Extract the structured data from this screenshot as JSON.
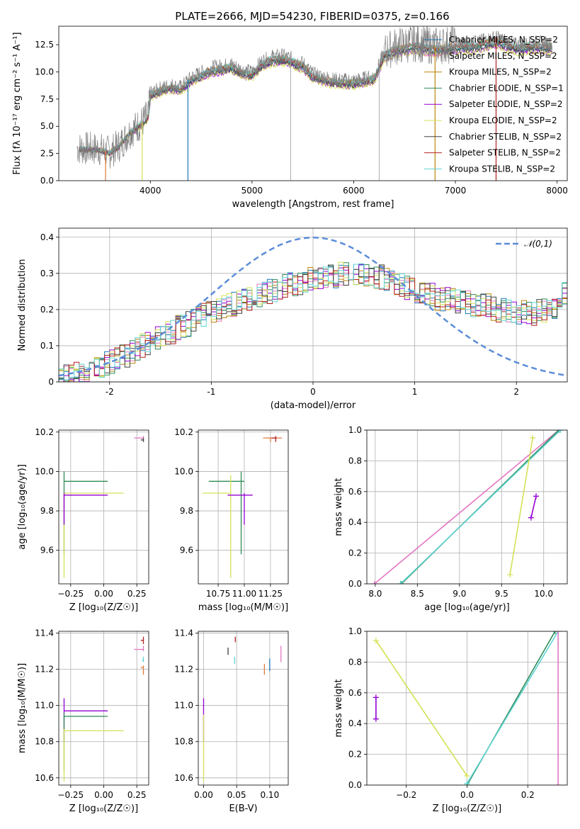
{
  "page": {
    "title": "PLATE=2666, MJD=54230, FIBERID=0375, z=0.166"
  },
  "chart_data": [
    {
      "id": "spectrum",
      "type": "line",
      "xlabel": "wavelength [Angstrom, rest frame]",
      "ylabel": "Flux [f_λ 10^-17 erg cm^-2 s^-1 A^-1]",
      "xlim": [
        3100,
        8100
      ],
      "ylim": [
        0,
        14.2
      ],
      "xticks": [
        4000,
        5000,
        6000,
        7000,
        8000
      ],
      "yticks": [
        0.0,
        2.5,
        5.0,
        7.5,
        10.0,
        12.5
      ],
      "grid": false,
      "legend_position": "right",
      "data_color": "#7f7f7f",
      "continuum": [
        [
          3280,
          3.0
        ],
        [
          3500,
          2.9
        ],
        [
          3600,
          2.6
        ],
        [
          3700,
          3.3
        ],
        [
          3800,
          4.5
        ],
        [
          3900,
          5.2
        ],
        [
          3980,
          6.0
        ],
        [
          4000,
          8.0
        ],
        [
          4100,
          8.5
        ],
        [
          4200,
          8.8
        ],
        [
          4300,
          8.6
        ],
        [
          4400,
          9.5
        ],
        [
          4600,
          10.4
        ],
        [
          4800,
          10.7
        ],
        [
          4900,
          10.2
        ],
        [
          5000,
          10.0
        ],
        [
          5100,
          11.0
        ],
        [
          5200,
          11.4
        ],
        [
          5300,
          11.5
        ],
        [
          5400,
          11.2
        ],
        [
          5500,
          10.8
        ],
        [
          5600,
          9.8
        ],
        [
          5800,
          9.3
        ],
        [
          6000,
          9.2
        ],
        [
          6200,
          9.6
        ],
        [
          6300,
          11.8
        ],
        [
          6400,
          12.3
        ],
        [
          6600,
          12.7
        ],
        [
          6800,
          12.4
        ],
        [
          7000,
          12.6
        ],
        [
          7200,
          12.7
        ],
        [
          7400,
          13.2
        ],
        [
          7600,
          12.5
        ],
        [
          7800,
          12.7
        ],
        [
          7900,
          12.6
        ]
      ],
      "series": [
        {
          "name": "Chabrier MILES, N_SSP=2",
          "color": "#1f77b4"
        },
        {
          "name": "Salpeter MILES, N_SSP=2",
          "color": "#e377c2"
        },
        {
          "name": "Kroupa MILES, N_SSP=2",
          "color": "#b8860b"
        },
        {
          "name": "Chabrier ELODIE, N_SSP=1",
          "color": "#2e8b57"
        },
        {
          "name": "Salpeter ELODIE, N_SSP=2",
          "color": "#9400d3"
        },
        {
          "name": "Kroupa ELODIE, N_SSP=2",
          "color": "#d4e157"
        },
        {
          "name": "Chabrier STELIB, N_SSP=2",
          "color": "#404040"
        },
        {
          "name": "Salpeter STELIB, N_SSP=2",
          "color": "#b22222"
        },
        {
          "name": "Kroupa STELIB, N_SSP=2",
          "color": "#5fd3d3"
        }
      ],
      "vlines_x": [
        5380,
        6250
      ]
    },
    {
      "id": "residuals",
      "type": "bar",
      "xlabel": "(data-model)/error",
      "ylabel": "Normed distribution",
      "xlim": [
        -2.5,
        2.5
      ],
      "ylim": [
        0,
        0.425
      ],
      "xticks": [
        -2,
        -1,
        0,
        1,
        2
      ],
      "yticks": [
        0.0,
        0.1,
        0.2,
        0.3,
        0.4
      ],
      "grid": true,
      "legend_position": "top-right",
      "gaussian_label": "𝒩(0,1)",
      "gaussian_color": "#5b8dd9",
      "bin_width": 0.1,
      "bin_start": -2.5,
      "base_hist": [
        0.01,
        0.02,
        0.02,
        0.02,
        0.025,
        0.03,
        0.035,
        0.04,
        0.04,
        0.05,
        0.055,
        0.06,
        0.07,
        0.075,
        0.08,
        0.09,
        0.1,
        0.105,
        0.11,
        0.12,
        0.13,
        0.135,
        0.14,
        0.15,
        0.155,
        0.16,
        0.17,
        0.175,
        0.185,
        0.19,
        0.195,
        0.2,
        0.205,
        0.21,
        0.215,
        0.22,
        0.225,
        0.23,
        0.235,
        0.24,
        0.245,
        0.25,
        0.255,
        0.26,
        0.265,
        0.27,
        0.27,
        0.275,
        0.28,
        0.285,
        0.29,
        0.29,
        0.29,
        0.29,
        0.29,
        0.3,
        0.3,
        0.3,
        0.3,
        0.3,
        0.3,
        0.3,
        0.29,
        0.29,
        0.28,
        0.28,
        0.27,
        0.27,
        0.26,
        0.26,
        0.25,
        0.25,
        0.24,
        0.24,
        0.23,
        0.23,
        0.23,
        0.23,
        0.22,
        0.22,
        0.22,
        0.21,
        0.21,
        0.21,
        0.21,
        0.2,
        0.2,
        0.2,
        0.2,
        0.19,
        0.19,
        0.19,
        0.19,
        0.19,
        0.2,
        0.2,
        0.2,
        0.21,
        0.22,
        0.24
      ]
    },
    {
      "id": "age_vs_Z",
      "type": "scatter",
      "xlabel": "Z [log10(Z/Z☉)]",
      "ylabel": "age  [log10(age/yr)]",
      "xlim": [
        -0.34,
        0.34
      ],
      "ylim": [
        9.43,
        10.21
      ],
      "xticks": [
        -0.25,
        0.0,
        0.25
      ],
      "xticklabels": [
        "−0.25",
        "0.00",
        "0.25"
      ],
      "yticks": [
        9.6,
        9.8,
        10.0,
        10.2
      ],
      "grid": true,
      "errorbars": [
        {
          "x": -0.3,
          "y": 9.95,
          "xlo": -0.3,
          "xhi": 0.03,
          "ylo": 9.58,
          "yhi": 10.0,
          "color": "#2e8b57"
        },
        {
          "x": -0.3,
          "y": 9.89,
          "xlo": -0.3,
          "xhi": 0.15,
          "ylo": 9.46,
          "yhi": 9.89,
          "color": "#d4e157"
        },
        {
          "x": -0.3,
          "y": 9.88,
          "xlo": -0.3,
          "xhi": 0.03,
          "ylo": 9.73,
          "yhi": 9.89,
          "color": "#9400d3"
        },
        {
          "x": 0.3,
          "y": 10.17,
          "xlo": 0.23,
          "xhi": 0.3,
          "ylo": 10.15,
          "yhi": 10.18,
          "color": "#e377c2"
        },
        {
          "x": 0.3,
          "y": 10.16,
          "xlo": 0.28,
          "xhi": 0.3,
          "ylo": 10.15,
          "yhi": 10.17,
          "color": "#404040"
        }
      ]
    },
    {
      "id": "age_vs_mass",
      "type": "scatter",
      "xlabel": "mass [log10(M/M☉)]",
      "xlim": [
        10.56,
        11.42
      ],
      "ylim": [
        9.43,
        10.21
      ],
      "xticks": [
        10.75,
        11.0,
        11.25
      ],
      "xticklabels": [
        "10.75",
        "11.00",
        "11.25"
      ],
      "yticks": [
        9.6,
        9.8,
        10.0,
        10.2
      ],
      "grid": true,
      "errorbars": [
        {
          "x": 10.97,
          "y": 9.95,
          "xlo": 10.66,
          "xhi": 11.0,
          "ylo": 9.58,
          "yhi": 10.0,
          "color": "#2e8b57"
        },
        {
          "x": 10.87,
          "y": 9.89,
          "xlo": 10.6,
          "xhi": 10.87,
          "ylo": 9.46,
          "yhi": 9.98,
          "color": "#d4e157"
        },
        {
          "x": 11.0,
          "y": 9.88,
          "xlo": 10.84,
          "xhi": 11.08,
          "ylo": 9.73,
          "yhi": 9.89,
          "color": "#9400d3"
        },
        {
          "x": 11.25,
          "y": 10.17,
          "xlo": 11.18,
          "xhi": 11.36,
          "ylo": 10.15,
          "yhi": 10.17,
          "color": "#e07b39"
        },
        {
          "x": 11.3,
          "y": 10.17,
          "xlo": 11.26,
          "xhi": 11.31,
          "ylo": 10.15,
          "yhi": 10.18,
          "color": "#b22222"
        }
      ]
    },
    {
      "id": "massweight_vs_age",
      "type": "line",
      "xlabel": "age  [log10(age/yr)]",
      "ylabel": "mass weight",
      "xlim": [
        7.9,
        10.28
      ],
      "ylim": [
        0,
        1.0
      ],
      "xticks": [
        8.0,
        8.5,
        9.0,
        9.5,
        10.0
      ],
      "xticklabels": [
        "8.0",
        "8.5",
        "9.0",
        "9.5",
        "10.0"
      ],
      "yticks": [
        0.0,
        0.2,
        0.4,
        0.6,
        0.8,
        1.0
      ],
      "grid": true,
      "lines": [
        {
          "color": "#e377c2",
          "points": [
            [
              7.99,
              0.0
            ],
            [
              10.18,
              1.0
            ]
          ]
        },
        {
          "color": "#2e8b57",
          "points": [
            [
              8.31,
              0.0
            ],
            [
              10.18,
              1.0
            ]
          ]
        },
        {
          "color": "#5fd3d3",
          "points": [
            [
              8.3,
              0.0
            ],
            [
              10.2,
              1.0
            ]
          ]
        },
        {
          "color": "#d4e157",
          "points": [
            [
              9.6,
              0.06
            ],
            [
              9.87,
              0.95
            ]
          ]
        },
        {
          "color": "#9400d3",
          "points": [
            [
              9.85,
              0.43
            ],
            [
              9.91,
              0.57
            ]
          ]
        }
      ]
    },
    {
      "id": "mass_vs_Z",
      "type": "scatter",
      "xlabel": "Z [log10(Z/Z☉)]",
      "ylabel": "mass [log10(M/M☉)]",
      "xlim": [
        -0.34,
        0.34
      ],
      "ylim": [
        10.56,
        11.41
      ],
      "xticks": [
        -0.25,
        0.0,
        0.25
      ],
      "xticklabels": [
        "−0.25",
        "0.00",
        "0.25"
      ],
      "yticks": [
        10.6,
        10.8,
        11.0,
        11.2,
        11.4
      ],
      "yticklabels": [
        "10.6",
        "10.8",
        "11.0",
        "11.2",
        "11.4"
      ],
      "grid": true,
      "errorbars": [
        {
          "x": -0.3,
          "y": 10.97,
          "xlo": -0.3,
          "xhi": 0.03,
          "ylo": 10.8,
          "yhi": 11.04,
          "color": "#9400d3"
        },
        {
          "x": -0.3,
          "y": 10.94,
          "xlo": -0.3,
          "xhi": 0.03,
          "ylo": 10.64,
          "yhi": 10.96,
          "color": "#2e8b57"
        },
        {
          "x": -0.3,
          "y": 10.86,
          "xlo": -0.3,
          "xhi": 0.15,
          "ylo": 10.58,
          "yhi": 10.87,
          "color": "#d4e157"
        },
        {
          "x": 0.3,
          "y": 11.31,
          "xlo": 0.23,
          "xhi": 0.3,
          "ylo": 11.3,
          "yhi": 11.33,
          "color": "#e377c2"
        },
        {
          "x": 0.3,
          "y": 11.36,
          "xlo": 0.28,
          "xhi": 0.3,
          "ylo": 11.34,
          "yhi": 11.38,
          "color": "#b22222"
        },
        {
          "x": 0.3,
          "y": 11.21,
          "xlo": 0.28,
          "xhi": 0.3,
          "ylo": 11.17,
          "yhi": 11.22,
          "color": "#e07b39"
        },
        {
          "x": 0.3,
          "y": 11.25,
          "xlo": 0.29,
          "xhi": 0.3,
          "ylo": 11.24,
          "yhi": 11.27,
          "color": "#5fd3d3"
        }
      ]
    },
    {
      "id": "mass_vs_ebv",
      "type": "scatter",
      "xlabel": "E(B-V)",
      "xlim": [
        -0.008,
        0.128
      ],
      "ylim": [
        10.56,
        11.41
      ],
      "xticks": [
        0.0,
        0.05,
        0.1
      ],
      "xticklabels": [
        "0.00",
        "0.05",
        "0.10"
      ],
      "yticks": [
        10.6,
        10.8,
        11.0,
        11.2,
        11.4
      ],
      "yticklabels": [
        "10.6",
        "10.8",
        "11.0",
        "11.2",
        "11.4"
      ],
      "grid": true,
      "errorbars": [
        {
          "x": 0.0,
          "y": 10.97,
          "xlo": 0.0,
          "xhi": 0.0,
          "ylo": 10.8,
          "yhi": 11.04,
          "color": "#9400d3"
        },
        {
          "x": 0.0,
          "y": 10.86,
          "xlo": 0.0,
          "xhi": 0.0,
          "ylo": 10.58,
          "yhi": 10.95,
          "color": "#d4e157"
        },
        {
          "x": 0.037,
          "y": 11.3,
          "xlo": 0.037,
          "xhi": 0.037,
          "ylo": 11.28,
          "yhi": 11.32,
          "color": "#404040"
        },
        {
          "x": 0.048,
          "y": 11.36,
          "xlo": 0.048,
          "xhi": 0.048,
          "ylo": 11.35,
          "yhi": 11.38,
          "color": "#b22222"
        },
        {
          "x": 0.047,
          "y": 11.25,
          "xlo": 0.047,
          "xhi": 0.047,
          "ylo": 11.23,
          "yhi": 11.27,
          "color": "#5fd3d3"
        },
        {
          "x": 0.092,
          "y": 11.2,
          "xlo": 0.092,
          "xhi": 0.092,
          "ylo": 11.17,
          "yhi": 11.23,
          "color": "#e07b39"
        },
        {
          "x": 0.1,
          "y": 11.22,
          "xlo": 0.1,
          "xhi": 0.1,
          "ylo": 11.19,
          "yhi": 11.26,
          "color": "#1f77b4"
        },
        {
          "x": 0.117,
          "y": 11.28,
          "xlo": 0.117,
          "xhi": 0.117,
          "ylo": 11.24,
          "yhi": 11.33,
          "color": "#e377c2"
        }
      ]
    },
    {
      "id": "massweight_vs_Z",
      "type": "line",
      "xlabel": "Z [log10(Z/Z☉)]",
      "ylabel": "mass weight",
      "xlim": [
        -0.33,
        0.33
      ],
      "ylim": [
        0,
        1.0
      ],
      "xticks": [
        -0.2,
        0.0,
        0.2
      ],
      "xticklabels": [
        "−0.2",
        "0.0",
        "0.2"
      ],
      "yticks": [
        0.0,
        0.2,
        0.4,
        0.6,
        0.8,
        1.0
      ],
      "grid": true,
      "lines": [
        {
          "color": "#d4e157",
          "points": [
            [
              -0.3,
              0.94
            ],
            [
              0.0,
              0.06
            ]
          ]
        },
        {
          "color": "#9400d3",
          "points": [
            [
              -0.3,
              0.43
            ],
            [
              -0.3,
              0.57
            ]
          ]
        },
        {
          "color": "#2e8b57",
          "points": [
            [
              0.0,
              0.0
            ],
            [
              0.29,
              1.0
            ]
          ]
        },
        {
          "color": "#5fd3d3",
          "points": [
            [
              0.0,
              0.01
            ],
            [
              0.3,
              1.0
            ]
          ]
        },
        {
          "color": "#e377c2",
          "points": [
            [
              0.3,
              0.0
            ],
            [
              0.3,
              1.0
            ]
          ]
        }
      ]
    }
  ]
}
